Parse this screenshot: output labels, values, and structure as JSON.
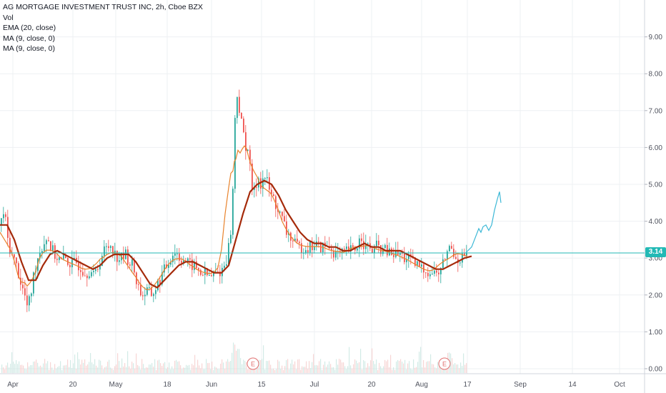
{
  "legend": {
    "title": "AG MORTGAGE INVESTMENT TRUST INC, 2h, Cboe BZX",
    "vol": "Vol",
    "ema": "EMA (20, close)",
    "ma1": "MA (9, close, 0)",
    "ma2": "MA (9, close, 0)"
  },
  "last_price": "3.14",
  "colors": {
    "up": "#26a69a",
    "down": "#ef5350",
    "ema": "#a52a0a",
    "ma": "#e8832c",
    "projection": "#3cb8d6",
    "price_line": "#22b9b5",
    "earnings": "#e0706f"
  },
  "earnings_marker": "E",
  "chart_data": {
    "type": "candlestick",
    "y_axis": {
      "ticks": [
        "9.00",
        "8.00",
        "7.00",
        "6.00",
        "5.00",
        "4.00",
        "3.00",
        "2.00",
        "1.00",
        "0.00"
      ],
      "range": [
        0,
        10
      ]
    },
    "x_axis": {
      "ticks": [
        "Apr",
        "20",
        "May",
        "18",
        "Jun",
        "15",
        "Jul",
        "20",
        "Aug",
        "17",
        "Sep",
        "14",
        "Oct"
      ]
    },
    "grid": true,
    "last_price": 3.14,
    "earnings_events": [
      "Jun",
      "Aug"
    ],
    "close_series": [
      [
        0,
        3.9
      ],
      [
        5,
        4.3
      ],
      [
        10,
        3.5
      ],
      [
        15,
        3.1
      ],
      [
        20,
        2.9
      ],
      [
        25,
        2.6
      ],
      [
        30,
        2.2
      ],
      [
        35,
        1.9
      ],
      [
        38,
        1.6
      ],
      [
        42,
        2.0
      ],
      [
        46,
        2.5
      ],
      [
        50,
        2.9
      ],
      [
        55,
        3.2
      ],
      [
        60,
        3.4
      ],
      [
        65,
        3.6
      ],
      [
        70,
        3.3
      ],
      [
        75,
        3.1
      ],
      [
        80,
        3.0
      ],
      [
        85,
        2.9
      ],
      [
        90,
        3.0
      ],
      [
        95,
        2.9
      ],
      [
        100,
        2.8
      ],
      [
        105,
        2.9
      ],
      [
        110,
        2.8
      ],
      [
        115,
        2.7
      ],
      [
        120,
        2.6
      ],
      [
        125,
        2.7
      ],
      [
        130,
        2.5
      ],
      [
        135,
        2.7
      ],
      [
        140,
        3.0
      ],
      [
        145,
        3.2
      ],
      [
        150,
        3.3
      ],
      [
        155,
        3.4
      ],
      [
        160,
        3.1
      ],
      [
        165,
        3.0
      ],
      [
        170,
        3.0
      ],
      [
        175,
        3.1
      ],
      [
        180,
        2.9
      ],
      [
        185,
        2.8
      ],
      [
        190,
        2.4
      ],
      [
        195,
        2.1
      ],
      [
        200,
        2.0
      ],
      [
        205,
        2.1
      ],
      [
        210,
        2.0
      ],
      [
        215,
        2.1
      ],
      [
        220,
        2.3
      ],
      [
        225,
        2.5
      ],
      [
        230,
        2.7
      ],
      [
        235,
        2.9
      ],
      [
        240,
        3.1
      ],
      [
        245,
        3.2
      ],
      [
        250,
        3.0
      ],
      [
        255,
        3.0
      ],
      [
        260,
        2.9
      ],
      [
        265,
        2.8
      ],
      [
        270,
        2.8
      ],
      [
        275,
        2.7
      ],
      [
        280,
        2.6
      ],
      [
        285,
        2.6
      ],
      [
        290,
        2.5
      ],
      [
        295,
        2.5
      ],
      [
        300,
        2.6
      ],
      [
        305,
        2.6
      ],
      [
        310,
        2.7
      ],
      [
        315,
        2.9
      ],
      [
        320,
        3.4
      ],
      [
        323,
        3.9
      ],
      [
        326,
        5.3
      ],
      [
        328,
        6.8
      ],
      [
        330,
        7.6
      ],
      [
        333,
        7.2
      ],
      [
        336,
        6.7
      ],
      [
        339,
        6.5
      ],
      [
        342,
        6.0
      ],
      [
        345,
        6.2
      ],
      [
        348,
        5.6
      ],
      [
        351,
        5.0
      ],
      [
        354,
        4.7
      ],
      [
        357,
        4.9
      ],
      [
        360,
        5.3
      ],
      [
        363,
        5.0
      ],
      [
        366,
        5.1
      ],
      [
        370,
        5.2
      ],
      [
        374,
        5.0
      ],
      [
        378,
        4.7
      ],
      [
        382,
        4.6
      ],
      [
        386,
        4.4
      ],
      [
        390,
        4.2
      ],
      [
        395,
        4.0
      ],
      [
        400,
        3.7
      ],
      [
        405,
        3.6
      ],
      [
        410,
        3.4
      ],
      [
        415,
        3.3
      ],
      [
        420,
        3.3
      ],
      [
        425,
        3.3
      ],
      [
        430,
        3.3
      ],
      [
        435,
        3.3
      ],
      [
        440,
        3.4
      ],
      [
        445,
        3.3
      ],
      [
        450,
        3.3
      ],
      [
        455,
        3.3
      ],
      [
        460,
        3.3
      ],
      [
        465,
        3.2
      ],
      [
        470,
        3.1
      ],
      [
        475,
        3.1
      ],
      [
        480,
        3.1
      ],
      [
        485,
        3.2
      ],
      [
        490,
        3.2
      ],
      [
        495,
        3.2
      ],
      [
        500,
        3.4
      ],
      [
        505,
        3.6
      ],
      [
        510,
        3.3
      ],
      [
        515,
        3.3
      ],
      [
        520,
        3.2
      ],
      [
        525,
        3.3
      ],
      [
        530,
        3.3
      ],
      [
        535,
        3.2
      ],
      [
        540,
        3.2
      ],
      [
        545,
        3.1
      ],
      [
        550,
        3.1
      ],
      [
        555,
        3.1
      ],
      [
        560,
        3.1
      ],
      [
        565,
        3.0
      ],
      [
        570,
        3.0
      ],
      [
        575,
        2.9
      ],
      [
        580,
        2.8
      ],
      [
        585,
        2.8
      ],
      [
        590,
        2.7
      ],
      [
        595,
        2.7
      ],
      [
        600,
        2.6
      ],
      [
        605,
        2.6
      ],
      [
        610,
        2.6
      ],
      [
        615,
        2.6
      ],
      [
        620,
        2.9
      ],
      [
        625,
        3.2
      ],
      [
        630,
        3.3
      ],
      [
        635,
        3.1
      ],
      [
        640,
        3.0
      ],
      [
        645,
        3.0
      ],
      [
        650,
        3.1
      ],
      [
        654,
        3.14
      ]
    ],
    "ema_series": [
      [
        0,
        3.9
      ],
      [
        10,
        3.9
      ],
      [
        20,
        3.5
      ],
      [
        30,
        2.9
      ],
      [
        40,
        2.4
      ],
      [
        50,
        2.4
      ],
      [
        60,
        2.8
      ],
      [
        70,
        3.1
      ],
      [
        80,
        3.2
      ],
      [
        90,
        3.1
      ],
      [
        100,
        3.0
      ],
      [
        110,
        2.9
      ],
      [
        120,
        2.8
      ],
      [
        130,
        2.7
      ],
      [
        140,
        2.8
      ],
      [
        150,
        3.0
      ],
      [
        160,
        3.1
      ],
      [
        170,
        3.1
      ],
      [
        180,
        3.1
      ],
      [
        190,
        2.9
      ],
      [
        200,
        2.6
      ],
      [
        210,
        2.3
      ],
      [
        220,
        2.2
      ],
      [
        230,
        2.4
      ],
      [
        240,
        2.6
      ],
      [
        250,
        2.8
      ],
      [
        260,
        2.9
      ],
      [
        270,
        2.9
      ],
      [
        280,
        2.8
      ],
      [
        290,
        2.7
      ],
      [
        300,
        2.6
      ],
      [
        310,
        2.6
      ],
      [
        320,
        2.8
      ],
      [
        330,
        3.5
      ],
      [
        340,
        4.2
      ],
      [
        350,
        4.8
      ],
      [
        360,
        5.0
      ],
      [
        370,
        5.1
      ],
      [
        380,
        5.0
      ],
      [
        390,
        4.7
      ],
      [
        400,
        4.3
      ],
      [
        410,
        4.0
      ],
      [
        420,
        3.7
      ],
      [
        430,
        3.5
      ],
      [
        440,
        3.4
      ],
      [
        450,
        3.4
      ],
      [
        460,
        3.3
      ],
      [
        470,
        3.3
      ],
      [
        480,
        3.2
      ],
      [
        490,
        3.2
      ],
      [
        500,
        3.3
      ],
      [
        510,
        3.4
      ],
      [
        520,
        3.3
      ],
      [
        530,
        3.3
      ],
      [
        540,
        3.2
      ],
      [
        550,
        3.2
      ],
      [
        560,
        3.2
      ],
      [
        570,
        3.1
      ],
      [
        580,
        3.0
      ],
      [
        590,
        2.9
      ],
      [
        600,
        2.8
      ],
      [
        610,
        2.7
      ],
      [
        620,
        2.7
      ],
      [
        630,
        2.8
      ],
      [
        640,
        2.9
      ],
      [
        650,
        3.0
      ],
      [
        660,
        3.05
      ]
    ],
    "projection": [
      [
        652,
        3.15
      ],
      [
        660,
        3.3
      ],
      [
        666,
        3.6
      ],
      [
        670,
        3.8
      ],
      [
        673,
        3.7
      ],
      [
        676,
        3.85
      ],
      [
        680,
        3.9
      ],
      [
        684,
        3.75
      ],
      [
        688,
        3.9
      ],
      [
        692,
        4.3
      ],
      [
        696,
        4.6
      ],
      [
        699,
        4.8
      ],
      [
        701,
        4.5
      ]
    ]
  }
}
